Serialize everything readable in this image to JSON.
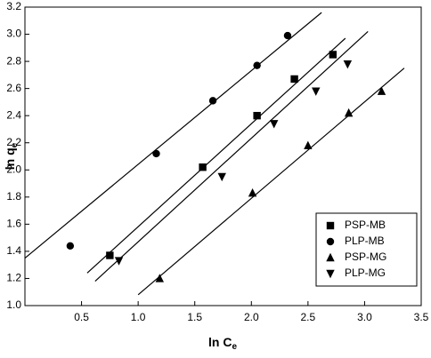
{
  "chart_data": {
    "type": "scatter",
    "xlabel": {
      "main": "ln C",
      "sub": "e"
    },
    "ylabel": {
      "main": "ln q",
      "sub": "e"
    },
    "xlim": [
      0,
      3.5
    ],
    "xticks": [
      0.5,
      {
        "value": 1,
        "label": "1.0"
      },
      1.5,
      {
        "value": 2,
        "label": "2.0"
      },
      2.5,
      {
        "value": 3,
        "label": "3.0"
      },
      3.5
    ],
    "ylim": [
      1.0,
      3.2
    ],
    "yticks": [
      {
        "value": 1,
        "label": "1.0"
      },
      1.2,
      1.4,
      1.6,
      1.8,
      {
        "value": 2,
        "label": "2.0"
      },
      2.2,
      2.4,
      2.6,
      2.8,
      {
        "value": 3,
        "label": "3.0"
      },
      3.2
    ],
    "legend": "lower right",
    "series": [
      {
        "name": "PSP-MB",
        "color": "#000000",
        "marker": "square",
        "x": [
          0.75,
          1.57,
          2.05,
          2.38,
          2.72
        ],
        "values": [
          1.37,
          2.02,
          2.4,
          2.67,
          2.85
        ],
        "fit": {
          "x": [
            0.55,
            2.83
          ],
          "y": [
            1.24,
            2.97
          ]
        }
      },
      {
        "name": "PLP-MB",
        "color": "#000000",
        "marker": "circle",
        "x": [
          0.4,
          1.16,
          1.66,
          2.05,
          2.32
        ],
        "values": [
          1.44,
          2.12,
          2.51,
          2.77,
          2.99
        ],
        "fit": {
          "x": [
            0,
            2.62
          ],
          "y": [
            1.35,
            3.16
          ]
        }
      },
      {
        "name": "PSP-MG",
        "color": "#000000",
        "marker": "triangle-up",
        "x": [
          1.19,
          2.01,
          2.5,
          2.86,
          3.15
        ],
        "values": [
          1.2,
          1.83,
          2.18,
          2.42,
          2.58
        ],
        "fit": {
          "x": [
            1.0,
            3.35
          ],
          "y": [
            1.08,
            2.75
          ]
        }
      },
      {
        "name": "PLP-MG",
        "color": "#000000",
        "marker": "triangle-down",
        "x": [
          0.83,
          1.74,
          2.2,
          2.57,
          2.85
        ],
        "values": [
          1.33,
          1.95,
          2.34,
          2.58,
          2.78
        ],
        "fit": {
          "x": [
            0.62,
            3.03
          ],
          "y": [
            1.18,
            3.02
          ]
        }
      }
    ]
  }
}
